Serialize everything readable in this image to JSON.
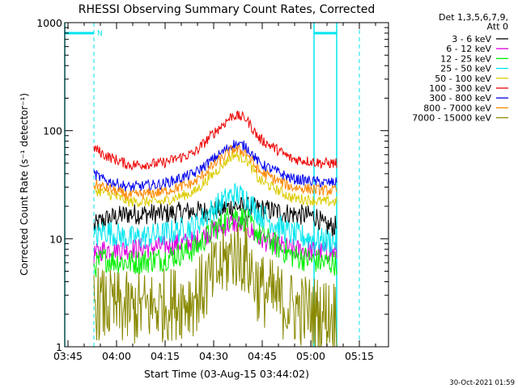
{
  "chart_data": {
    "type": "line",
    "title": "RHESSI Observing Summary Count Rates, Corrected",
    "xlabel": "Start Time (03-Aug-15 03:44:02)",
    "ylabel": "Corrected Count Rate (s⁻¹ detector⁻¹)",
    "yscale": "log",
    "xlim_min": [
      0,
      100
    ],
    "ylim": [
      1,
      1000
    ],
    "grid": false,
    "xticks": [
      {
        "label": "03:45",
        "t": 1
      },
      {
        "label": "04:00",
        "t": 16
      },
      {
        "label": "04:15",
        "t": 31
      },
      {
        "label": "04:30",
        "t": 46
      },
      {
        "label": "04:45",
        "t": 61
      },
      {
        "label": "05:00",
        "t": 76
      },
      {
        "label": "05:15",
        "t": 91
      }
    ],
    "yticks": [
      {
        "label": "1",
        "v": 1
      },
      {
        "label": "10",
        "v": 10
      },
      {
        "label": "100",
        "v": 100
      },
      {
        "label": "1000",
        "v": 1000
      }
    ],
    "legend": {
      "position": "right",
      "header": [
        "Det 1,3,5,6,7,9,",
        "Att 0"
      ]
    },
    "series": [
      {
        "name": "3 - 6 keV",
        "color": "#000000",
        "noise": 0.1,
        "x": [
          9,
          12,
          20,
          30,
          40,
          46,
          52,
          60,
          70,
          78,
          80,
          84
        ],
        "y": [
          13,
          15,
          17,
          17,
          18,
          18,
          20,
          19,
          17,
          16,
          13,
          13
        ]
      },
      {
        "name": "6 - 12 keV",
        "color": "#dd00dd",
        "noise": 0.1,
        "x": [
          9,
          12,
          20,
          30,
          40,
          46,
          52,
          56,
          60,
          70,
          80,
          84
        ],
        "y": [
          7,
          8,
          8,
          8.5,
          9.5,
          12,
          14,
          13,
          10,
          8,
          7.5,
          7.5
        ]
      },
      {
        "name": "12 - 25 keV",
        "color": "#00ee00",
        "noise": 0.12,
        "x": [
          9,
          12,
          20,
          30,
          40,
          46,
          52,
          56,
          60,
          70,
          80,
          84
        ],
        "y": [
          5.5,
          6.5,
          6,
          6.5,
          8,
          12,
          17,
          15,
          11,
          7,
          6,
          6
        ]
      },
      {
        "name": "25 - 50 keV",
        "color": "#00e5ee",
        "noise": 0.12,
        "x": [
          9,
          12,
          20,
          30,
          40,
          46,
          52,
          56,
          60,
          70,
          80,
          84
        ],
        "y": [
          10,
          12,
          10,
          11,
          13,
          19,
          26,
          24,
          17,
          11,
          9.5,
          9.5
        ]
      },
      {
        "name": "50 - 100 keV",
        "color": "#ddcc00",
        "noise": 0.05,
        "x": [
          9,
          12,
          20,
          30,
          40,
          46,
          52,
          56,
          60,
          70,
          80,
          84
        ],
        "y": [
          28,
          27,
          22,
          22,
          27,
          40,
          60,
          55,
          35,
          24,
          22,
          22
        ]
      },
      {
        "name": "100 - 300 keV",
        "color": "#ee0000",
        "noise": 0.05,
        "x": [
          9,
          12,
          20,
          30,
          40,
          46,
          52,
          56,
          60,
          70,
          80,
          84
        ],
        "y": [
          70,
          60,
          48,
          50,
          62,
          95,
          140,
          130,
          85,
          55,
          50,
          50
        ]
      },
      {
        "name": "300 - 800 keV",
        "color": "#0000ee",
        "noise": 0.05,
        "x": [
          9,
          12,
          20,
          30,
          40,
          46,
          52,
          56,
          60,
          70,
          80,
          84
        ],
        "y": [
          40,
          35,
          30,
          32,
          40,
          55,
          75,
          72,
          50,
          36,
          33,
          33
        ]
      },
      {
        "name": "800 - 7000 keV",
        "color": "#ff8800",
        "noise": 0.05,
        "x": [
          9,
          12,
          20,
          30,
          40,
          46,
          52,
          56,
          60,
          70,
          80,
          84
        ],
        "y": [
          32,
          30,
          25,
          27,
          33,
          48,
          68,
          63,
          42,
          30,
          28,
          28
        ]
      },
      {
        "name": "7000 - 15000 keV",
        "color": "#888800",
        "noise": 0.35,
        "x": [
          9,
          12,
          20,
          30,
          40,
          46,
          52,
          56,
          60,
          70,
          80,
          84
        ],
        "y": [
          2.6,
          2.4,
          2.2,
          2.4,
          2.8,
          4.5,
          7.5,
          6.5,
          3.5,
          2.3,
          2.0,
          2.0
        ]
      }
    ],
    "annotations": {
      "color": "#00e5ee",
      "marker": "N",
      "segments": [
        {
          "x": [
            0,
            9
          ],
          "y": 800
        },
        {
          "x": [
            77,
            84
          ],
          "y": 800
        }
      ],
      "solid_lines": [
        0,
        77,
        84
      ],
      "dashed_lines": [
        9,
        91
      ]
    }
  },
  "footer": {
    "timestamp": "30-Oct-2021 01:59"
  }
}
